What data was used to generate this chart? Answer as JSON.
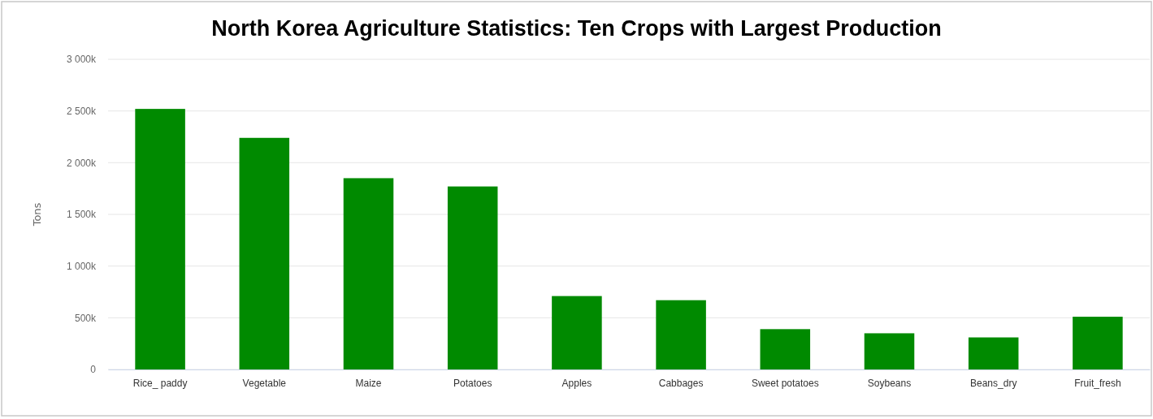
{
  "chart_data": {
    "type": "bar",
    "title": "North Korea Agriculture Statistics: Ten Crops with Largest Production",
    "ylabel": "Tons",
    "categories": [
      "Rice_ paddy",
      "Vegetable",
      "Maize",
      "Potatoes",
      "Apples",
      "Cabbages",
      "Sweet potatoes",
      "Soybeans",
      "Beans_dry",
      "Fruit_fresh"
    ],
    "values": [
      2520000,
      2240000,
      1850000,
      1770000,
      710000,
      670000,
      390000,
      350000,
      310000,
      510000
    ],
    "color": "#008a00",
    "ylim": [
      0,
      3000000
    ],
    "yticks": [
      {
        "value": 0,
        "label": "0"
      },
      {
        "value": 500000,
        "label": "500k"
      },
      {
        "value": 1000000,
        "label": "1 000k"
      },
      {
        "value": 1500000,
        "label": "1 500k"
      },
      {
        "value": 2000000,
        "label": "2 000k"
      },
      {
        "value": 2500000,
        "label": "2 500k"
      },
      {
        "value": 3000000,
        "label": "3 000k"
      }
    ],
    "grid": "y"
  }
}
